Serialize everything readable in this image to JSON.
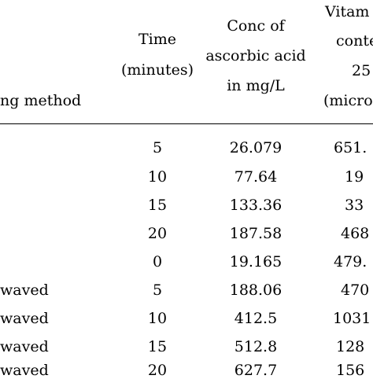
{
  "headers": {
    "method": "ng method",
    "time": [
      "Time",
      "(minutes)"
    ],
    "conc": [
      "Conc of",
      "ascorbic acid",
      "in mg/L"
    ],
    "vitamin": [
      "Vitam",
      "conte",
      "25",
      "(microg"
    ]
  },
  "rows": [
    {
      "method": "",
      "time": "5",
      "conc": "26.079",
      "vitamin": "651."
    },
    {
      "method": "",
      "time": "10",
      "conc": "77.64",
      "vitamin": "19"
    },
    {
      "method": "",
      "time": "15",
      "conc": "133.36",
      "vitamin": "33"
    },
    {
      "method": "",
      "time": "20",
      "conc": "187.58",
      "vitamin": "468"
    },
    {
      "method": "",
      "time": "0",
      "conc": "19.165",
      "vitamin": "479."
    },
    {
      "method": "waved",
      "time": "5",
      "conc": "188.06",
      "vitamin": "470"
    },
    {
      "method": "waved",
      "time": "10",
      "conc": "412.5",
      "vitamin": "1031"
    },
    {
      "method": "waved",
      "time": "15",
      "conc": "512.8",
      "vitamin": "128"
    },
    {
      "method": "waved",
      "time": "20",
      "conc": "627.7",
      "vitamin": "156"
    }
  ]
}
